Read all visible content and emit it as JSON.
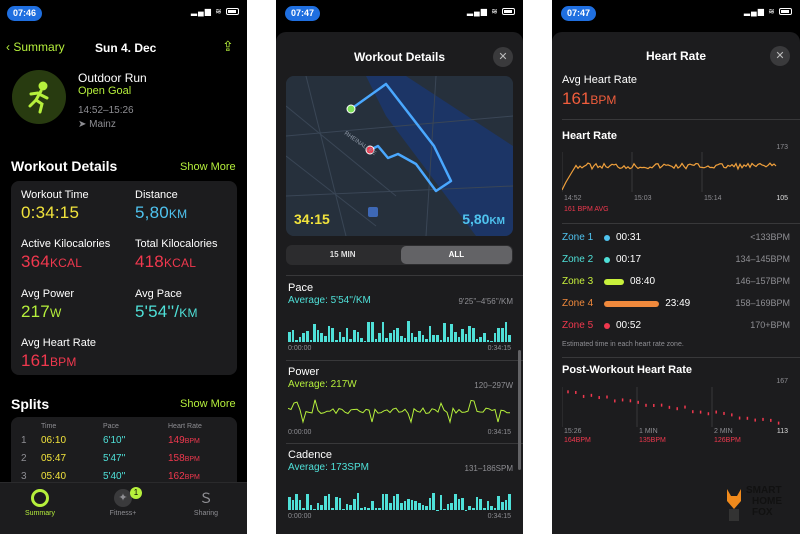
{
  "colors": {
    "green": "#b6f03c",
    "yellow": "#f1e33c",
    "blue": "#4fc3ef",
    "red": "#f0384e",
    "cyan": "#4fe0d8",
    "accent": "#1f6fe0"
  },
  "summary": {
    "status_time": "07:46",
    "back_label": "Summary",
    "date": "Sun 4. Dec",
    "workout_name": "Outdoor Run",
    "goal": "Open Goal",
    "time_range": "14:52–15:26",
    "location": "Mainz",
    "section_title": "Workout Details",
    "show_more": "Show More",
    "metrics": {
      "workout_time_label": "Workout Time",
      "workout_time": "0:34:15",
      "distance_label": "Distance",
      "distance": "5,80",
      "distance_unit": "KM",
      "active_kcal_label": "Active Kilocalories",
      "active_kcal": "364",
      "active_kcal_unit": "KCAL",
      "total_kcal_label": "Total Kilocalories",
      "total_kcal": "418",
      "total_kcal_unit": "KCAL",
      "avg_power_label": "Avg Power",
      "avg_power": "217",
      "avg_power_unit": "W",
      "avg_pace_label": "Avg Pace",
      "avg_pace": "5'54''/",
      "avg_pace_unit": "KM",
      "avg_hr_label": "Avg Heart Rate",
      "avg_hr": "161",
      "avg_hr_unit": "BPM"
    },
    "splits_title": "Splits",
    "splits_show_more": "Show More",
    "splits_headers": [
      "Time",
      "Pace",
      "Heart Rate"
    ],
    "splits": [
      {
        "n": "1",
        "time": "06:10",
        "pace": "6'10''",
        "hr": "149",
        "unit": "BPM"
      },
      {
        "n": "2",
        "time": "05:47",
        "pace": "5'47''",
        "hr": "158",
        "unit": "BPM"
      },
      {
        "n": "3",
        "time": "05:40",
        "pace": "5'40''",
        "hr": "162",
        "unit": "BPM"
      }
    ],
    "tabs": [
      "Summary",
      "Fitness+",
      "Sharing"
    ],
    "fitness_badge": "1"
  },
  "details": {
    "status_time": "07:47",
    "title": "Workout Details",
    "map_time": "34:15",
    "map_distance": "5,80",
    "map_distance_unit": "KM",
    "map_labels": [
      "RHEINALLEE"
    ],
    "seg": [
      "15 MIN",
      "ALL"
    ],
    "pace": {
      "title": "Pace",
      "avg": "Average: 5'54''/KM",
      "range": "9'25''–4'56''/KM",
      "t0": "0:00:00",
      "t1": "0:34:15"
    },
    "power": {
      "title": "Power",
      "avg": "Average: 217W",
      "range": "120–297W",
      "t0": "0:00:00",
      "t1": "0:34:15"
    },
    "cadence": {
      "title": "Cadence",
      "avg": "Average: 173SPM",
      "range": "131–186SPM",
      "t0": "0:00:00",
      "t1": "0:34:15"
    }
  },
  "heart": {
    "status_time": "07:47",
    "title": "Heart Rate",
    "avg_label": "Avg Heart Rate",
    "avg_value": "161",
    "avg_unit": "BPM",
    "chart_title": "Heart Rate",
    "y_max": "173",
    "y_min": "105",
    "x_labels": [
      "14:52",
      "15:03",
      "15:14"
    ],
    "avg_note": "161 BPM AVG",
    "zones": [
      {
        "name": "Zone 1",
        "time": "00:31",
        "range": "<133BPM",
        "color": "#4fc3ef",
        "frac": 0.03
      },
      {
        "name": "Zone 2",
        "time": "00:17",
        "range": "134–145BPM",
        "color": "#4fe0d8",
        "frac": 0.02
      },
      {
        "name": "Zone 3",
        "time": "08:40",
        "range": "146–157BPM",
        "color": "#c8f03c",
        "frac": 0.25
      },
      {
        "name": "Zone 4",
        "time": "23:49",
        "range": "158–169BPM",
        "color": "#f0893c",
        "frac": 0.69
      },
      {
        "name": "Zone 5",
        "time": "00:52",
        "range": "170+BPM",
        "color": "#f0384e",
        "frac": 0.03
      }
    ],
    "zone_note": "Estimated time in each heart rate zone.",
    "post_title": "Post-Workout Heart Rate",
    "post_y_max": "167",
    "post_y_min": "113",
    "post_x_labels": [
      "15:26",
      "1 MIN",
      "2 MIN"
    ],
    "post_values": [
      "164BPM",
      "135BPM",
      "126BPM"
    ]
  },
  "watermark": {
    "line1": "SMART",
    "line2": "HOME",
    "line3": "FOX"
  }
}
